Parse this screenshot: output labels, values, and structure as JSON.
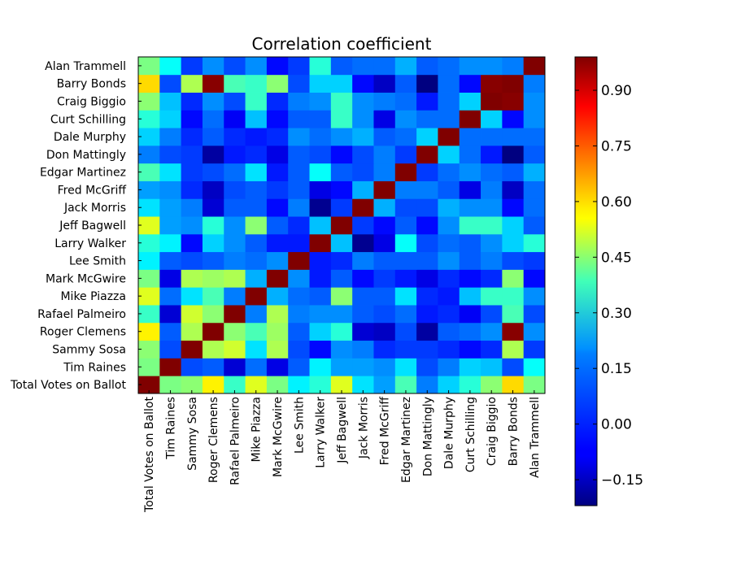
{
  "chart_data": {
    "type": "heatmap",
    "title": "Correlation coefficient",
    "xlabel": "",
    "ylabel": "",
    "colormap": "jet",
    "grid": false,
    "vmin": -0.22,
    "vmax": 0.99,
    "colorbar": {
      "position": "right",
      "ticks": [
        0.9,
        0.75,
        0.6,
        0.45,
        0.3,
        0.15,
        0.0,
        -0.15
      ],
      "tick_labels": [
        "0.90",
        "0.75",
        "0.60",
        "0.45",
        "0.30",
        "0.15",
        "0.00",
        "−0.15"
      ]
    },
    "labels": [
      "Total Votes on Ballot",
      "Tim Raines",
      "Sammy Sosa",
      "Roger Clemens",
      "Rafael Palmeiro",
      "Mike Piazza",
      "Mark McGwire",
      "Lee Smith",
      "Larry Walker",
      "Jeff Bagwell",
      "Jack Morris",
      "Fred McGriff",
      "Edgar Martinez",
      "Don Mattingly",
      "Dale Murphy",
      "Curt Schilling",
      "Craig Biggio",
      "Barry Bonds",
      "Alan Trammell"
    ],
    "matrix": [
      [
        1.0,
        0.38,
        0.4,
        0.55,
        0.3,
        0.5,
        0.38,
        0.22,
        0.28,
        0.5,
        0.2,
        0.12,
        0.32,
        0.08,
        0.18,
        0.28,
        0.4,
        0.58,
        0.38
      ],
      [
        0.38,
        1.0,
        0.02,
        0.04,
        -0.12,
        0.06,
        -0.1,
        0.04,
        0.22,
        0.12,
        0.12,
        0.1,
        0.2,
        0.02,
        0.08,
        0.18,
        0.16,
        0.02,
        0.24
      ],
      [
        0.4,
        0.02,
        1.0,
        0.44,
        0.48,
        0.2,
        0.44,
        0.02,
        -0.06,
        0.1,
        0.08,
        -0.02,
        0.0,
        0.0,
        -0.02,
        -0.06,
        -0.02,
        0.44,
        0.0
      ],
      [
        0.55,
        0.04,
        0.44,
        1.0,
        0.4,
        0.32,
        0.42,
        0.04,
        0.18,
        0.28,
        -0.12,
        -0.14,
        0.02,
        -0.18,
        0.04,
        0.06,
        0.1,
        0.98,
        0.1
      ],
      [
        0.3,
        -0.12,
        0.48,
        0.4,
        1.0,
        0.08,
        0.44,
        0.08,
        0.1,
        0.1,
        0.04,
        0.02,
        0.06,
        -0.04,
        -0.02,
        -0.08,
        0.02,
        0.32,
        0.02
      ],
      [
        0.5,
        0.06,
        0.2,
        0.32,
        0.08,
        1.0,
        0.14,
        0.06,
        0.04,
        0.4,
        0.04,
        0.04,
        0.2,
        -0.02,
        -0.04,
        0.16,
        0.3,
        0.3,
        0.1
      ],
      [
        0.38,
        -0.1,
        0.44,
        0.42,
        0.44,
        0.14,
        1.0,
        0.1,
        -0.04,
        0.04,
        -0.06,
        0.0,
        -0.04,
        -0.1,
        -0.02,
        -0.06,
        -0.02,
        0.4,
        -0.06
      ],
      [
        0.22,
        0.04,
        0.02,
        0.04,
        0.08,
        0.06,
        0.1,
        1.0,
        -0.04,
        -0.02,
        0.08,
        0.04,
        0.04,
        0.04,
        0.1,
        0.04,
        0.08,
        0.02,
        0.0
      ],
      [
        0.28,
        0.22,
        -0.06,
        0.18,
        0.1,
        0.04,
        -0.04,
        -0.04,
        1.0,
        0.16,
        -0.2,
        -0.1,
        0.24,
        0.02,
        0.06,
        0.04,
        0.1,
        0.18,
        0.28
      ],
      [
        0.5,
        0.12,
        0.1,
        0.28,
        0.1,
        0.4,
        0.04,
        -0.02,
        0.16,
        1.0,
        0.0,
        -0.06,
        0.04,
        -0.06,
        0.1,
        0.3,
        0.3,
        0.18,
        0.04
      ],
      [
        0.2,
        0.12,
        0.08,
        -0.12,
        0.04,
        0.04,
        -0.06,
        0.08,
        -0.2,
        0.0,
        1.0,
        0.14,
        0.02,
        0.02,
        0.14,
        0.1,
        0.1,
        -0.06,
        0.06
      ],
      [
        0.12,
        0.1,
        -0.02,
        -0.14,
        0.02,
        0.04,
        0.0,
        0.04,
        -0.1,
        -0.06,
        0.14,
        1.0,
        0.08,
        0.08,
        0.04,
        -0.1,
        0.08,
        -0.14,
        0.06
      ],
      [
        0.32,
        0.2,
        0.0,
        0.02,
        0.06,
        0.2,
        -0.04,
        0.04,
        0.24,
        0.04,
        0.02,
        0.08,
        1.0,
        0.0,
        0.06,
        0.1,
        0.06,
        0.04,
        0.14
      ],
      [
        0.08,
        0.02,
        0.0,
        -0.18,
        -0.04,
        -0.02,
        -0.1,
        0.04,
        0.02,
        -0.06,
        0.02,
        0.08,
        0.0,
        1.0,
        0.18,
        0.06,
        -0.04,
        -0.22,
        0.04
      ],
      [
        0.18,
        0.08,
        -0.02,
        0.04,
        -0.02,
        -0.04,
        -0.02,
        0.1,
        0.06,
        0.1,
        0.14,
        0.04,
        0.06,
        0.18,
        1.0,
        0.06,
        0.06,
        0.06,
        0.06
      ],
      [
        0.28,
        0.18,
        -0.06,
        0.06,
        -0.08,
        0.16,
        -0.06,
        0.04,
        0.04,
        0.3,
        0.1,
        -0.1,
        0.1,
        0.06,
        0.06,
        1.0,
        0.18,
        -0.06,
        0.1
      ],
      [
        0.4,
        0.16,
        -0.02,
        0.1,
        0.02,
        0.3,
        -0.02,
        0.08,
        0.1,
        0.3,
        0.1,
        0.08,
        0.06,
        -0.04,
        0.06,
        0.18,
        1.0,
        0.98,
        0.1
      ],
      [
        0.58,
        0.02,
        0.44,
        0.98,
        0.32,
        0.3,
        0.4,
        0.02,
        0.18,
        0.18,
        -0.06,
        -0.14,
        0.04,
        -0.22,
        0.06,
        -0.06,
        0.98,
        1.0,
        0.08
      ],
      [
        0.38,
        0.24,
        0.0,
        0.1,
        0.02,
        0.1,
        -0.06,
        0.0,
        0.28,
        0.04,
        0.06,
        0.06,
        0.14,
        0.04,
        0.06,
        0.1,
        0.1,
        0.08,
        1.0
      ]
    ]
  }
}
